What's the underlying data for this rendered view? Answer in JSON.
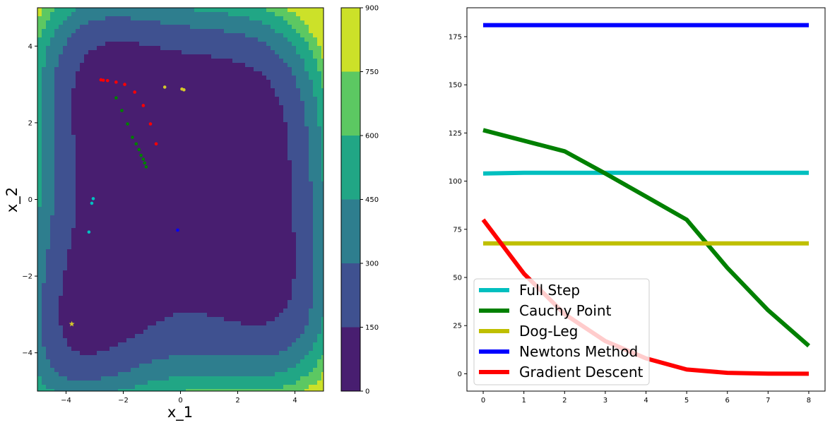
{
  "chart_data": [
    {
      "type": "contour",
      "xlabel": "x_1",
      "ylabel": "x_2",
      "xlim": [
        -5,
        5
      ],
      "ylim": [
        -5,
        5
      ],
      "xticks": [
        -4,
        -2,
        0,
        2,
        4
      ],
      "yticks": [
        -4,
        -2,
        0,
        2,
        4
      ],
      "colorbar": {
        "levels": [
          0,
          150,
          300,
          450,
          600,
          750,
          900
        ],
        "tick_labels": [
          "0",
          "150",
          "300",
          "450",
          "600",
          "750",
          "900"
        ],
        "colors": [
          "#481e70",
          "#3f5190",
          "#2e7e8e",
          "#21a685",
          "#5cc862",
          "#cce129"
        ]
      },
      "start_marker": {
        "x": -3.8,
        "y": -3.25,
        "color": "#d4c92a",
        "shape": "star"
      },
      "trajectories": [
        {
          "color": "#00c0c0",
          "points": [
            [
              -3.2,
              -0.85
            ],
            [
              -3.1,
              -0.1
            ],
            [
              -3.05,
              0.02
            ]
          ]
        },
        {
          "color": "#0000ff",
          "points": [
            [
              -0.1,
              -0.8
            ]
          ]
        },
        {
          "color": "#d4c92a",
          "points": [
            [
              -0.55,
              2.93
            ],
            [
              0.05,
              2.88
            ],
            [
              0.12,
              2.86
            ]
          ]
        },
        {
          "color": "#ff0000",
          "points": [
            [
              -0.85,
              1.45
            ],
            [
              -1.05,
              1.97
            ],
            [
              -1.3,
              2.45
            ],
            [
              -1.6,
              2.8
            ],
            [
              -1.95,
              3.0
            ],
            [
              -2.25,
              3.06
            ],
            [
              -2.55,
              3.1
            ],
            [
              -2.7,
              3.11
            ],
            [
              -2.78,
              3.12
            ]
          ]
        },
        {
          "color": "#008000",
          "points": [
            [
              -1.2,
              0.85
            ],
            [
              -1.25,
              0.95
            ],
            [
              -1.3,
              1.05
            ],
            [
              -1.38,
              1.15
            ],
            [
              -1.45,
              1.3
            ],
            [
              -1.55,
              1.45
            ],
            [
              -1.68,
              1.62
            ],
            [
              -1.85,
              1.97
            ],
            [
              -2.05,
              2.32
            ],
            [
              -2.25,
              2.65
            ]
          ]
        }
      ]
    },
    {
      "type": "line",
      "x": [
        0,
        1,
        2,
        3,
        4,
        5,
        6,
        7,
        8
      ],
      "xlim": [
        -0.4,
        8.4
      ],
      "ylim": [
        -9,
        190
      ],
      "xticks": [
        0,
        1,
        2,
        3,
        4,
        5,
        6,
        7,
        8
      ],
      "yticks": [
        0,
        25,
        50,
        75,
        100,
        125,
        150,
        175
      ],
      "legend_position": "lower-left",
      "series": [
        {
          "name": "Full Step",
          "color": "#00bfbf",
          "values": [
            104,
            104.3,
            104.3,
            104.3,
            104.3,
            104.3,
            104.3,
            104.3,
            104.3
          ]
        },
        {
          "name": "Cauchy Point",
          "color": "#008000",
          "values": [
            126.5,
            121,
            115.5,
            104,
            92,
            80,
            55,
            33,
            14.5
          ]
        },
        {
          "name": "Dog-Leg",
          "color": "#bfbf00",
          "values": [
            67.7,
            67.7,
            67.7,
            67.7,
            67.7,
            67.7,
            67.7,
            67.7,
            67.7
          ]
        },
        {
          "name": "Newtons Method",
          "color": "#0000ff",
          "values": [
            181,
            181,
            181,
            181,
            181,
            181,
            181,
            181,
            181
          ]
        },
        {
          "name": "Gradient Descent",
          "color": "#ff0000",
          "values": [
            80,
            52,
            31,
            17,
            8,
            2.2,
            0.5,
            0.1,
            0
          ]
        }
      ]
    }
  ]
}
